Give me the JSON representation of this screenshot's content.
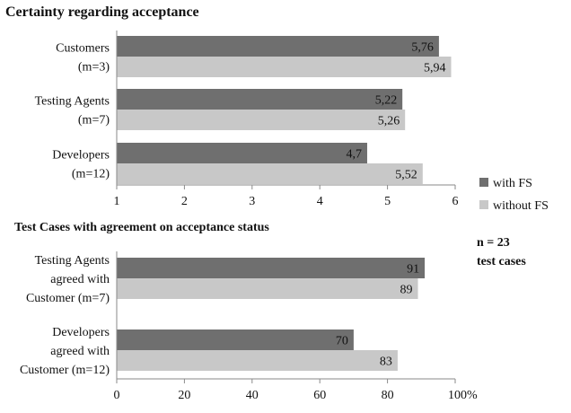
{
  "legend": {
    "with_fs": "with FS",
    "without_fs": "without FS"
  },
  "note": {
    "line1": "n = 23",
    "line2": "test cases"
  },
  "chart_data": [
    {
      "type": "bar",
      "orientation": "horizontal",
      "title": "Certainty regarding acceptance",
      "categories": [
        [
          "Customers",
          "(m=3)"
        ],
        [
          "Testing Agents",
          "(m=7)"
        ],
        [
          "Developers",
          "(m=12)"
        ]
      ],
      "series": [
        {
          "name": "with FS",
          "values": [
            5.76,
            5.22,
            4.7
          ],
          "labels": [
            "5,76",
            "5,22",
            "4,7"
          ]
        },
        {
          "name": "without FS",
          "values": [
            5.94,
            5.26,
            5.52
          ],
          "labels": [
            "5,94",
            "5,26",
            "5,52"
          ]
        }
      ],
      "xlim": [
        1,
        6
      ],
      "ticks": [
        1,
        2,
        3,
        4,
        5,
        6
      ],
      "tick_labels": [
        "1",
        "2",
        "3",
        "4",
        "5",
        "6"
      ],
      "grid": false,
      "legend_position": "bottom-right"
    },
    {
      "type": "bar",
      "orientation": "horizontal",
      "title": "Test Cases with agreement on acceptance status",
      "categories": [
        [
          "Testing Agents",
          "agreed with",
          "Customer (m=7)"
        ],
        [
          "Developers",
          "agreed with",
          "Customer (m=12)"
        ]
      ],
      "series": [
        {
          "name": "with FS",
          "values": [
            91,
            70
          ],
          "labels": [
            "91",
            "70"
          ]
        },
        {
          "name": "without FS",
          "values": [
            89,
            83
          ],
          "labels": [
            "89",
            "83"
          ]
        }
      ],
      "xlim": [
        0,
        100
      ],
      "ticks": [
        0,
        20,
        40,
        60,
        80,
        100
      ],
      "tick_labels": [
        "0",
        "20",
        "40",
        "60",
        "80",
        "100%"
      ],
      "grid": false
    }
  ],
  "colors": {
    "with_fs": "#6f6f6f",
    "without_fs": "#c8c8c8",
    "axis": "#8a8a8a"
  }
}
